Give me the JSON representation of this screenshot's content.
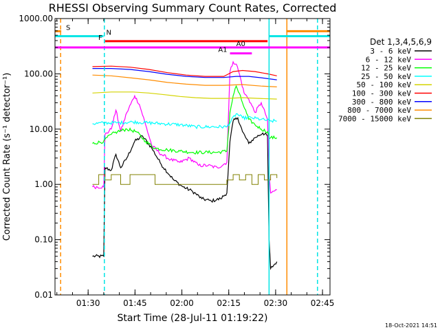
{
  "chart_data": {
    "type": "line",
    "title": "RHESSI Observing Summary Count Rates, Corrected",
    "xlabel": "Start Time (28-Jul-11 01:19:22)",
    "ylabel": "Corrected Count Rate (s⁻¹ detector⁻¹)",
    "yscale": "log",
    "ylim": [
      0.01,
      1000
    ],
    "xlim_minutes_after_start": [
      0,
      88
    ],
    "x_tick_labels": [
      "01:30",
      "01:45",
      "02:00",
      "02:15",
      "02:30",
      "02:45"
    ],
    "x_tick_minutes": [
      10.6,
      25.6,
      40.6,
      55.6,
      70.6,
      85.6
    ],
    "y_tick_labels": [
      "0.01",
      "0.10",
      "1.00",
      "10.00",
      "100.00",
      "1000.00"
    ],
    "y_tick_values": [
      0.01,
      0.1,
      1,
      10,
      100,
      1000
    ],
    "legend_title": "Det 1,3,4,5,6,9",
    "legend_position": "right",
    "footer_date": "18-Oct-2021 14:51",
    "flags": [
      {
        "label": "S",
        "color": "#ff8c00",
        "y": 590,
        "segments": [
          [
            0,
            2.0
          ],
          [
            74,
            88
          ]
        ]
      },
      {
        "label": "N",
        "color": "#00e5e5",
        "y": 480,
        "segments": [
          [
            0,
            15.5
          ],
          [
            68.5,
            88
          ]
        ]
      },
      {
        "label": "F",
        "color": "#ff0000",
        "y": 390,
        "segments": [
          [
            16,
            68
          ]
        ]
      },
      {
        "label": "A0",
        "color": "#ff00ff",
        "y": 300,
        "segments": [
          [
            0,
            88
          ]
        ]
      },
      {
        "label": "A1",
        "color": "#ff00ff",
        "y": 235,
        "segments": [
          [
            56,
            63
          ]
        ]
      }
    ],
    "vertical_lines": [
      {
        "x": 1.8,
        "color": "#ff8c00",
        "style": "dashed"
      },
      {
        "x": 15.8,
        "color": "#00e5e5",
        "style": "dashed"
      },
      {
        "x": 68.5,
        "color": "#00e5e5",
        "style": "solid"
      },
      {
        "x": 74.2,
        "color": "#ff8c00",
        "style": "solid"
      },
      {
        "x": 84.0,
        "color": "#00e5e5",
        "style": "dashed"
      }
    ],
    "series": [
      {
        "name": "3 - 6 keV",
        "color": "#000000",
        "x": [
          12,
          15.6,
          16,
          18,
          19.5,
          21,
          23,
          25.5,
          28,
          31,
          34,
          38,
          41,
          44,
          47,
          50,
          53,
          55,
          56,
          57,
          58.5,
          60,
          62,
          64,
          66.5,
          68,
          68.5,
          69,
          71
        ],
        "y": [
          0.05,
          0.05,
          2.0,
          1.8,
          3.5,
          2.0,
          3.0,
          6.0,
          7.5,
          4.5,
          2.3,
          1.2,
          0.9,
          0.75,
          0.55,
          0.5,
          0.55,
          0.7,
          6.0,
          14,
          16,
          9.0,
          5.5,
          7.0,
          8.5,
          7.5,
          0.1,
          0.03,
          0.04
        ]
      },
      {
        "name": "6 - 12 keV",
        "color": "#ff00ff",
        "x": [
          12,
          15.6,
          16,
          18,
          19.5,
          21,
          23,
          25.5,
          27,
          29,
          31,
          34,
          37,
          40,
          43,
          46,
          49,
          52,
          55,
          56,
          57,
          58,
          59,
          60.5,
          62,
          64,
          66,
          68,
          68.5,
          69,
          71
        ],
        "y": [
          0.9,
          0.9,
          8,
          10,
          22,
          9,
          20,
          40,
          28,
          12,
          5,
          3.5,
          2.8,
          2.5,
          3.0,
          2.2,
          2.2,
          2.0,
          2.5,
          110,
          165,
          150,
          100,
          45,
          35,
          20,
          30,
          15,
          1.5,
          0.7,
          0.8
        ]
      },
      {
        "name": "12 - 25 keV",
        "color": "#00ff00",
        "x": [
          12,
          15.6,
          16,
          18,
          20,
          23,
          26,
          29,
          32,
          36,
          40,
          44,
          48,
          52,
          55,
          56,
          57,
          58,
          60,
          62,
          64,
          66,
          68,
          68.5,
          69,
          71
        ],
        "y": [
          5.5,
          6.0,
          6.5,
          8,
          9,
          10,
          9,
          6,
          4.5,
          4.2,
          4.0,
          3.8,
          3.8,
          3.8,
          4.0,
          20,
          40,
          60,
          30,
          15,
          12,
          10,
          9,
          7,
          7,
          7
        ]
      },
      {
        "name": "25 - 50 keV",
        "color": "#00ffff",
        "x": [
          12,
          16,
          20,
          25,
          30,
          35,
          40,
          45,
          50,
          55,
          58,
          60,
          63,
          66,
          69,
          71
        ],
        "y": [
          12.5,
          13,
          13,
          13.5,
          13,
          12.5,
          12,
          11,
          11,
          11,
          19,
          16,
          16,
          15,
          14,
          14
        ]
      },
      {
        "name": "50 - 100 keV",
        "color": "#d4d400",
        "x": [
          12,
          18,
          25,
          30,
          35,
          40,
          45,
          50,
          55,
          60,
          65,
          71
        ],
        "y": [
          45,
          47,
          47,
          45,
          42,
          39,
          37,
          36,
          36,
          37,
          36,
          35
        ]
      },
      {
        "name": "100 - 300 keV",
        "color": "#ff0000",
        "x": [
          12,
          18,
          24,
          30,
          36,
          42,
          48,
          54,
          57,
          60,
          64,
          68,
          71
        ],
        "y": [
          135,
          138,
          132,
          120,
          105,
          95,
          90,
          90,
          110,
          115,
          110,
          100,
          92
        ]
      },
      {
        "name": "300 - 800 keV",
        "color": "#0000ff",
        "x": [
          12,
          18,
          24,
          30,
          36,
          42,
          48,
          54,
          58,
          62,
          66,
          71
        ],
        "y": [
          125,
          125,
          120,
          110,
          98,
          90,
          86,
          86,
          90,
          90,
          85,
          78
        ]
      },
      {
        "name": "800 - 7000 keV",
        "color": "#ff8c00",
        "x": [
          12,
          18,
          24,
          30,
          36,
          42,
          48,
          54,
          60,
          66,
          71
        ],
        "y": [
          95,
          92,
          85,
          78,
          70,
          65,
          62,
          62,
          64,
          60,
          58
        ]
      },
      {
        "name": "7000 - 15000 keV",
        "color": "#808000",
        "x": [
          12,
          14,
          16,
          18,
          21,
          24,
          28,
          32,
          36,
          40,
          44,
          48,
          52,
          55,
          57,
          59,
          61,
          63,
          65,
          67,
          69,
          71
        ],
        "y": [
          1.0,
          1.5,
          1.2,
          1.5,
          1.0,
          1.5,
          1.5,
          1.0,
          1.0,
          1.0,
          1.0,
          1.0,
          1.0,
          1.2,
          1.5,
          1.2,
          1.5,
          1.0,
          1.5,
          1.2,
          1.5,
          1.3
        ]
      }
    ]
  }
}
